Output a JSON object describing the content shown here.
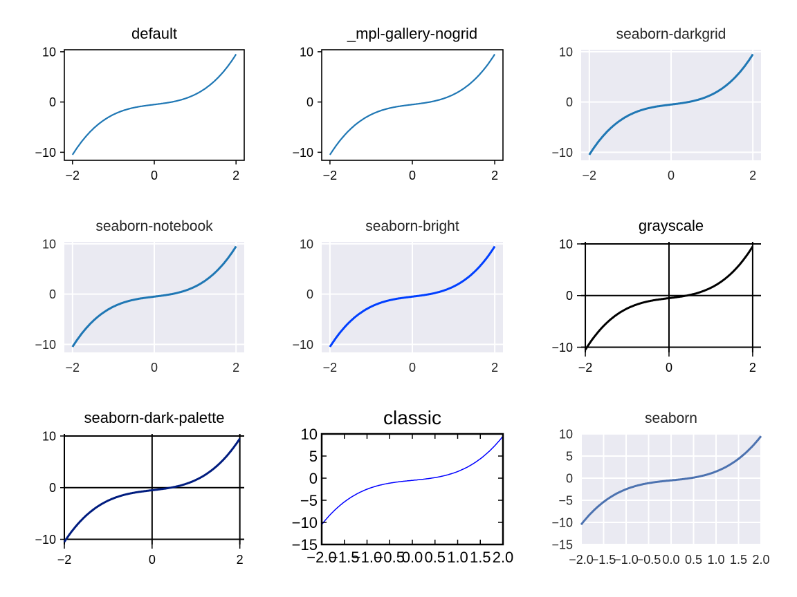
{
  "chart_data": [
    {
      "type": "line",
      "title": "default",
      "function": "y = x^3 + x - 0.5",
      "x_range": [
        -2,
        2
      ],
      "xlim": [
        -2.2,
        2.2
      ],
      "ylim": [
        -11.6,
        10.4
      ],
      "xticks": [
        -2,
        0,
        2
      ],
      "xtick_labels": [
        "−2",
        "0",
        "2"
      ],
      "yticks": [
        -10,
        0,
        10
      ],
      "ytick_labels": [
        "−10",
        "0",
        "10"
      ],
      "style": "default",
      "line_color": "#1f77b4",
      "bg": "#ffffff",
      "grid": false
    },
    {
      "type": "line",
      "title": "_mpl-gallery-nogrid",
      "function": "y = x^3 + x - 0.5",
      "x_range": [
        -2,
        2
      ],
      "xlim": [
        -2.2,
        2.2
      ],
      "ylim": [
        -11.6,
        10.4
      ],
      "xticks": [
        -2,
        0,
        2
      ],
      "xtick_labels": [
        "−2",
        "0",
        "2"
      ],
      "yticks": [
        -10,
        0,
        10
      ],
      "ytick_labels": [
        "−10",
        "0",
        "10"
      ],
      "style": "default",
      "line_color": "#1f77b4",
      "bg": "#ffffff",
      "grid": false
    },
    {
      "type": "line",
      "title": "seaborn-darkgrid",
      "function": "y = x^3 + x - 0.5",
      "x_range": [
        -2,
        2
      ],
      "xlim": [
        -2.2,
        2.2
      ],
      "ylim": [
        -11.6,
        10.4
      ],
      "xticks": [
        -2,
        0,
        2
      ],
      "xtick_labels": [
        "−2",
        "0",
        "2"
      ],
      "yticks": [
        -10,
        0,
        10
      ],
      "ytick_labels": [
        "−10",
        "0",
        "10"
      ],
      "style": "seaborn",
      "line_color": "#1f77b4",
      "bg": "#eaeaf2",
      "grid": true
    },
    {
      "type": "line",
      "title": "seaborn-notebook",
      "function": "y = x^3 + x - 0.5",
      "x_range": [
        -2,
        2
      ],
      "xlim": [
        -2.2,
        2.2
      ],
      "ylim": [
        -11.6,
        10.4
      ],
      "xticks": [
        -2,
        0,
        2
      ],
      "xtick_labels": [
        "−2",
        "0",
        "2"
      ],
      "yticks": [
        -10,
        0,
        10
      ],
      "ytick_labels": [
        "−10",
        "0",
        "10"
      ],
      "style": "seaborn",
      "line_color": "#1f77b4",
      "bg": "#eaeaf2",
      "grid": true
    },
    {
      "type": "line",
      "title": "seaborn-bright",
      "function": "y = x^3 + x - 0.5",
      "x_range": [
        -2,
        2
      ],
      "xlim": [
        -2.2,
        2.2
      ],
      "ylim": [
        -11.6,
        10.4
      ],
      "xticks": [
        -2,
        0,
        2
      ],
      "xtick_labels": [
        "−2",
        "0",
        "2"
      ],
      "yticks": [
        -10,
        0,
        10
      ],
      "ytick_labels": [
        "−10",
        "0",
        "10"
      ],
      "style": "seaborn",
      "line_color": "#003fff",
      "bg": "#eaeaf2",
      "grid": true
    },
    {
      "type": "line",
      "title": "grayscale",
      "function": "y = x^3 + x - 0.5",
      "x_range": [
        -2,
        2
      ],
      "xlim": [
        -2.1,
        2.2
      ],
      "ylim": [
        -11,
        10.4
      ],
      "xticks": [
        -2,
        0,
        2
      ],
      "xtick_labels": [
        "−2",
        "0",
        "2"
      ],
      "yticks": [
        -10,
        0,
        10
      ],
      "ytick_labels": [
        "−10",
        "0",
        "10"
      ],
      "style": "blackgrid",
      "line_color": "#000000",
      "bg": "#ffffff",
      "grid": true
    },
    {
      "type": "line",
      "title": "seaborn-dark-palette",
      "function": "y = x^3 + x - 0.5",
      "x_range": [
        -2,
        2
      ],
      "xlim": [
        -2,
        2.1
      ],
      "ylim": [
        -11,
        10.4
      ],
      "xticks": [
        -2,
        0,
        2
      ],
      "xtick_labels": [
        "−2",
        "0",
        "2"
      ],
      "yticks": [
        -10,
        0,
        10
      ],
      "ytick_labels": [
        "−10",
        "0",
        "10"
      ],
      "style": "blackgrid",
      "line_color": "#001c7f",
      "bg": "#ffffff",
      "grid": true
    },
    {
      "type": "line",
      "title": "classic",
      "function": "y = x^3 + x - 0.5",
      "x_range": [
        -2,
        2
      ],
      "xlim": [
        -2,
        2
      ],
      "ylim": [
        -15,
        10
      ],
      "xticks": [
        -2,
        -1.5,
        -1,
        -0.5,
        0,
        0.5,
        1,
        1.5,
        2
      ],
      "xtick_labels": [
        "−2.0",
        "−1.5",
        "−1.0",
        "−0.5",
        "0.0",
        "0.5",
        "1.0",
        "1.5",
        "2.0"
      ],
      "yticks": [
        -15,
        -10,
        -5,
        0,
        5,
        10
      ],
      "ytick_labels": [
        "−15",
        "−10",
        "−5",
        "0",
        "5",
        "10"
      ],
      "style": "classic",
      "line_color": "#0000ff",
      "bg": "#ffffff",
      "grid": false
    },
    {
      "type": "line",
      "title": "seaborn",
      "function": "y = x^3 + x - 0.5",
      "x_range": [
        -2,
        2
      ],
      "xlim": [
        -2,
        2
      ],
      "ylim": [
        -15,
        10
      ],
      "xticks": [
        -2,
        -1.5,
        -1,
        -0.5,
        0,
        0.5,
        1,
        1.5,
        2
      ],
      "xtick_labels": [
        "−2.0",
        "−1.5",
        "−1.0",
        "−0.5",
        "0.0",
        "0.5",
        "1.0",
        "1.5",
        "2.0"
      ],
      "yticks": [
        -15,
        -10,
        -5,
        0,
        5,
        10
      ],
      "ytick_labels": [
        "−15",
        "−10",
        "−5",
        "0",
        "5",
        "10"
      ],
      "style": "seaborn",
      "line_color": "#4c72b0",
      "bg": "#eaeaf2",
      "grid": true
    }
  ]
}
